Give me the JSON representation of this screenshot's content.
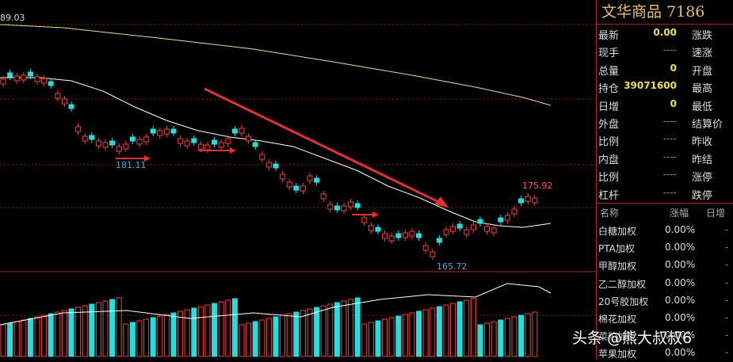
{
  "chart": {
    "top_price": "89.03",
    "labels": {
      "low1": "181.11",
      "low2": "165.72",
      "high": "175.92"
    }
  },
  "panel": {
    "title": "文华商品 7186",
    "quote": [
      {
        "k1": "最新",
        "v1": "0.00",
        "k2": "涨跌"
      },
      {
        "k1": "现手",
        "v1": "----",
        "k2": "速涨"
      },
      {
        "k1": "总量",
        "v1": "0",
        "k2": "开盘"
      },
      {
        "k1": "持仓",
        "v1": "39071600",
        "k2": "最高"
      },
      {
        "k1": "日增",
        "v1": "0",
        "k2": "最低"
      },
      {
        "k1": "外盘",
        "v1": "----",
        "k2": "结算价"
      },
      {
        "k1": "比例",
        "v1": "----",
        "k2": "昨收"
      },
      {
        "k1": "内盘",
        "v1": "----",
        "k2": "昨结"
      },
      {
        "k1": "比例",
        "v1": "----",
        "k2": "涨停"
      },
      {
        "k1": "杠杆",
        "v1": "----",
        "k2": "跌停"
      }
    ],
    "list_header": {
      "name": "名称",
      "pct": "涨幅",
      "inc": "日增"
    },
    "list": [
      {
        "name": "白糖加权",
        "pct": "0.00%"
      },
      {
        "name": "PTA加权",
        "pct": "0.00%"
      },
      {
        "name": "甲醇加权",
        "pct": "0.00%"
      },
      {
        "name": "乙二醇加权",
        "pct": "0.00%"
      },
      {
        "name": "20号胶加权",
        "pct": "0.00%"
      },
      {
        "name": "棉花加权",
        "pct": "0.00%"
      },
      {
        "name": "菜粕加权",
        "pct": "0.00%"
      },
      {
        "name": "苹果加权",
        "pct": "0.00%"
      }
    ]
  },
  "watermark": "头条 @熊大叔叔6"
}
